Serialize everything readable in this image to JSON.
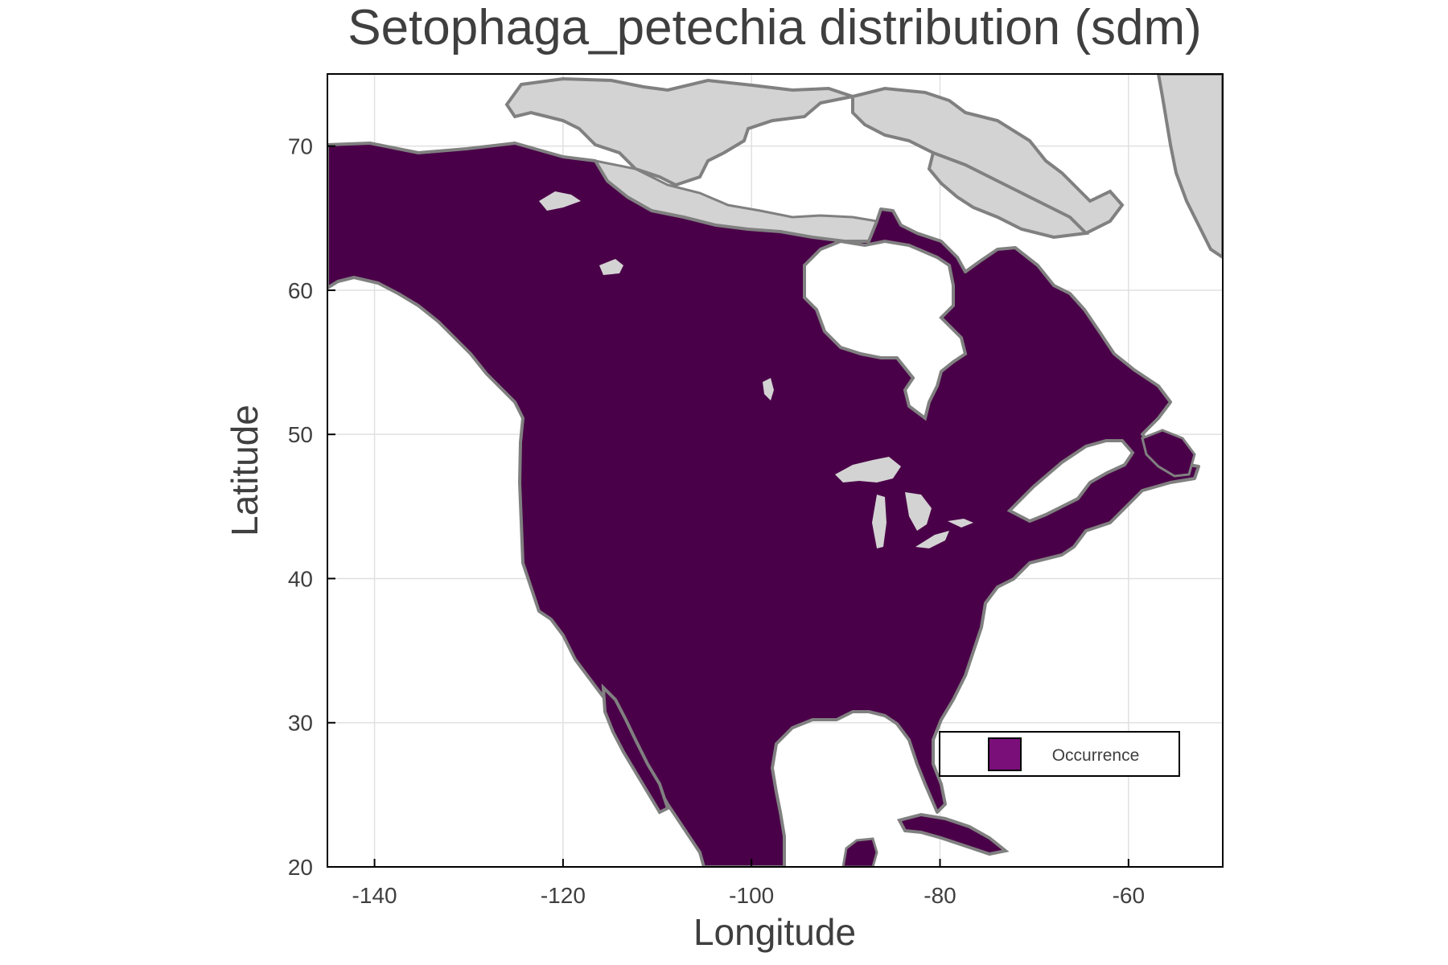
{
  "chart_data": {
    "type": "map",
    "title": "Setophaga_petechia distribution (sdm)",
    "xlabel": "Longitude",
    "ylabel": "Latitude",
    "xlim": [
      -145,
      -50
    ],
    "ylim": [
      20,
      75
    ],
    "x_ticks": [
      -140,
      -120,
      -100,
      -80,
      -60
    ],
    "y_ticks": [
      20,
      30,
      40,
      50,
      60,
      70
    ],
    "grid": true,
    "legend_position": "bottom-right",
    "legend": [
      {
        "label": "Occurrence",
        "color": "#7a0f7a"
      }
    ],
    "colors": {
      "occurrence": "#4a0048",
      "land": "#d3d3d3",
      "coastline": "#808080",
      "water": "#ffffff"
    }
  }
}
